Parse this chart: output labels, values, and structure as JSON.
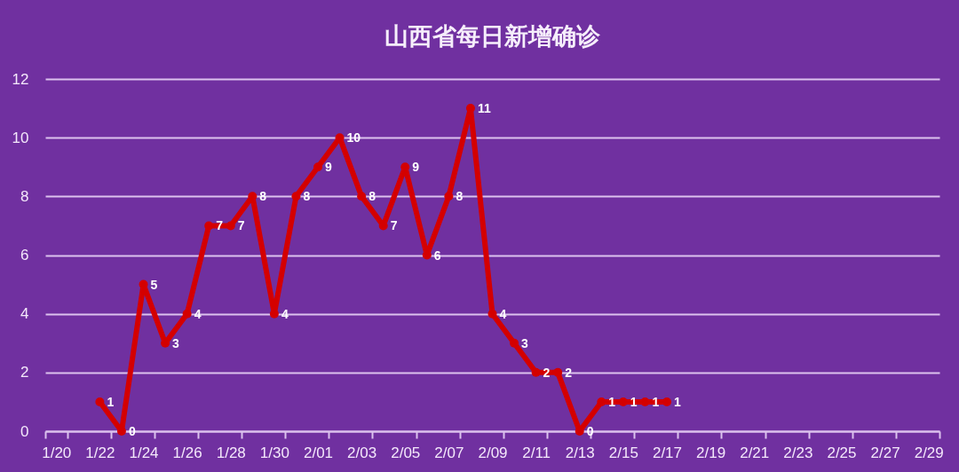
{
  "chart_data": {
    "type": "line",
    "title": "山西省每日新增确诊",
    "categories": [
      "1/20",
      null,
      "1/22",
      null,
      "1/24",
      null,
      "1/26",
      null,
      "1/28",
      null,
      "1/30",
      null,
      "2/01",
      null,
      "2/03",
      null,
      "2/05",
      null,
      "2/07",
      null,
      "2/09",
      null,
      "2/11",
      null,
      "2/13",
      null,
      "2/15",
      null,
      "2/17",
      null,
      "2/19",
      null,
      "2/21",
      null,
      "2/23",
      null,
      "2/25",
      null,
      "2/27",
      null,
      "2/29"
    ],
    "series": [
      {
        "color": "#d40000",
        "values": [
          null,
          null,
          1,
          0,
          5,
          3,
          4,
          7,
          7,
          8,
          4,
          8,
          9,
          10,
          8,
          7,
          9,
          6,
          8,
          11,
          4,
          3,
          2,
          2,
          0,
          1,
          1,
          1,
          1,
          null,
          null,
          null,
          null,
          null,
          null,
          null,
          null,
          null,
          null,
          null,
          null
        ]
      }
    ],
    "ylim": [
      0,
      12
    ],
    "yticks": [
      0,
      2,
      4,
      6,
      8,
      10,
      12
    ],
    "grid": "y",
    "marker": "circle",
    "line_style": "solid",
    "data_labels": true
  }
}
